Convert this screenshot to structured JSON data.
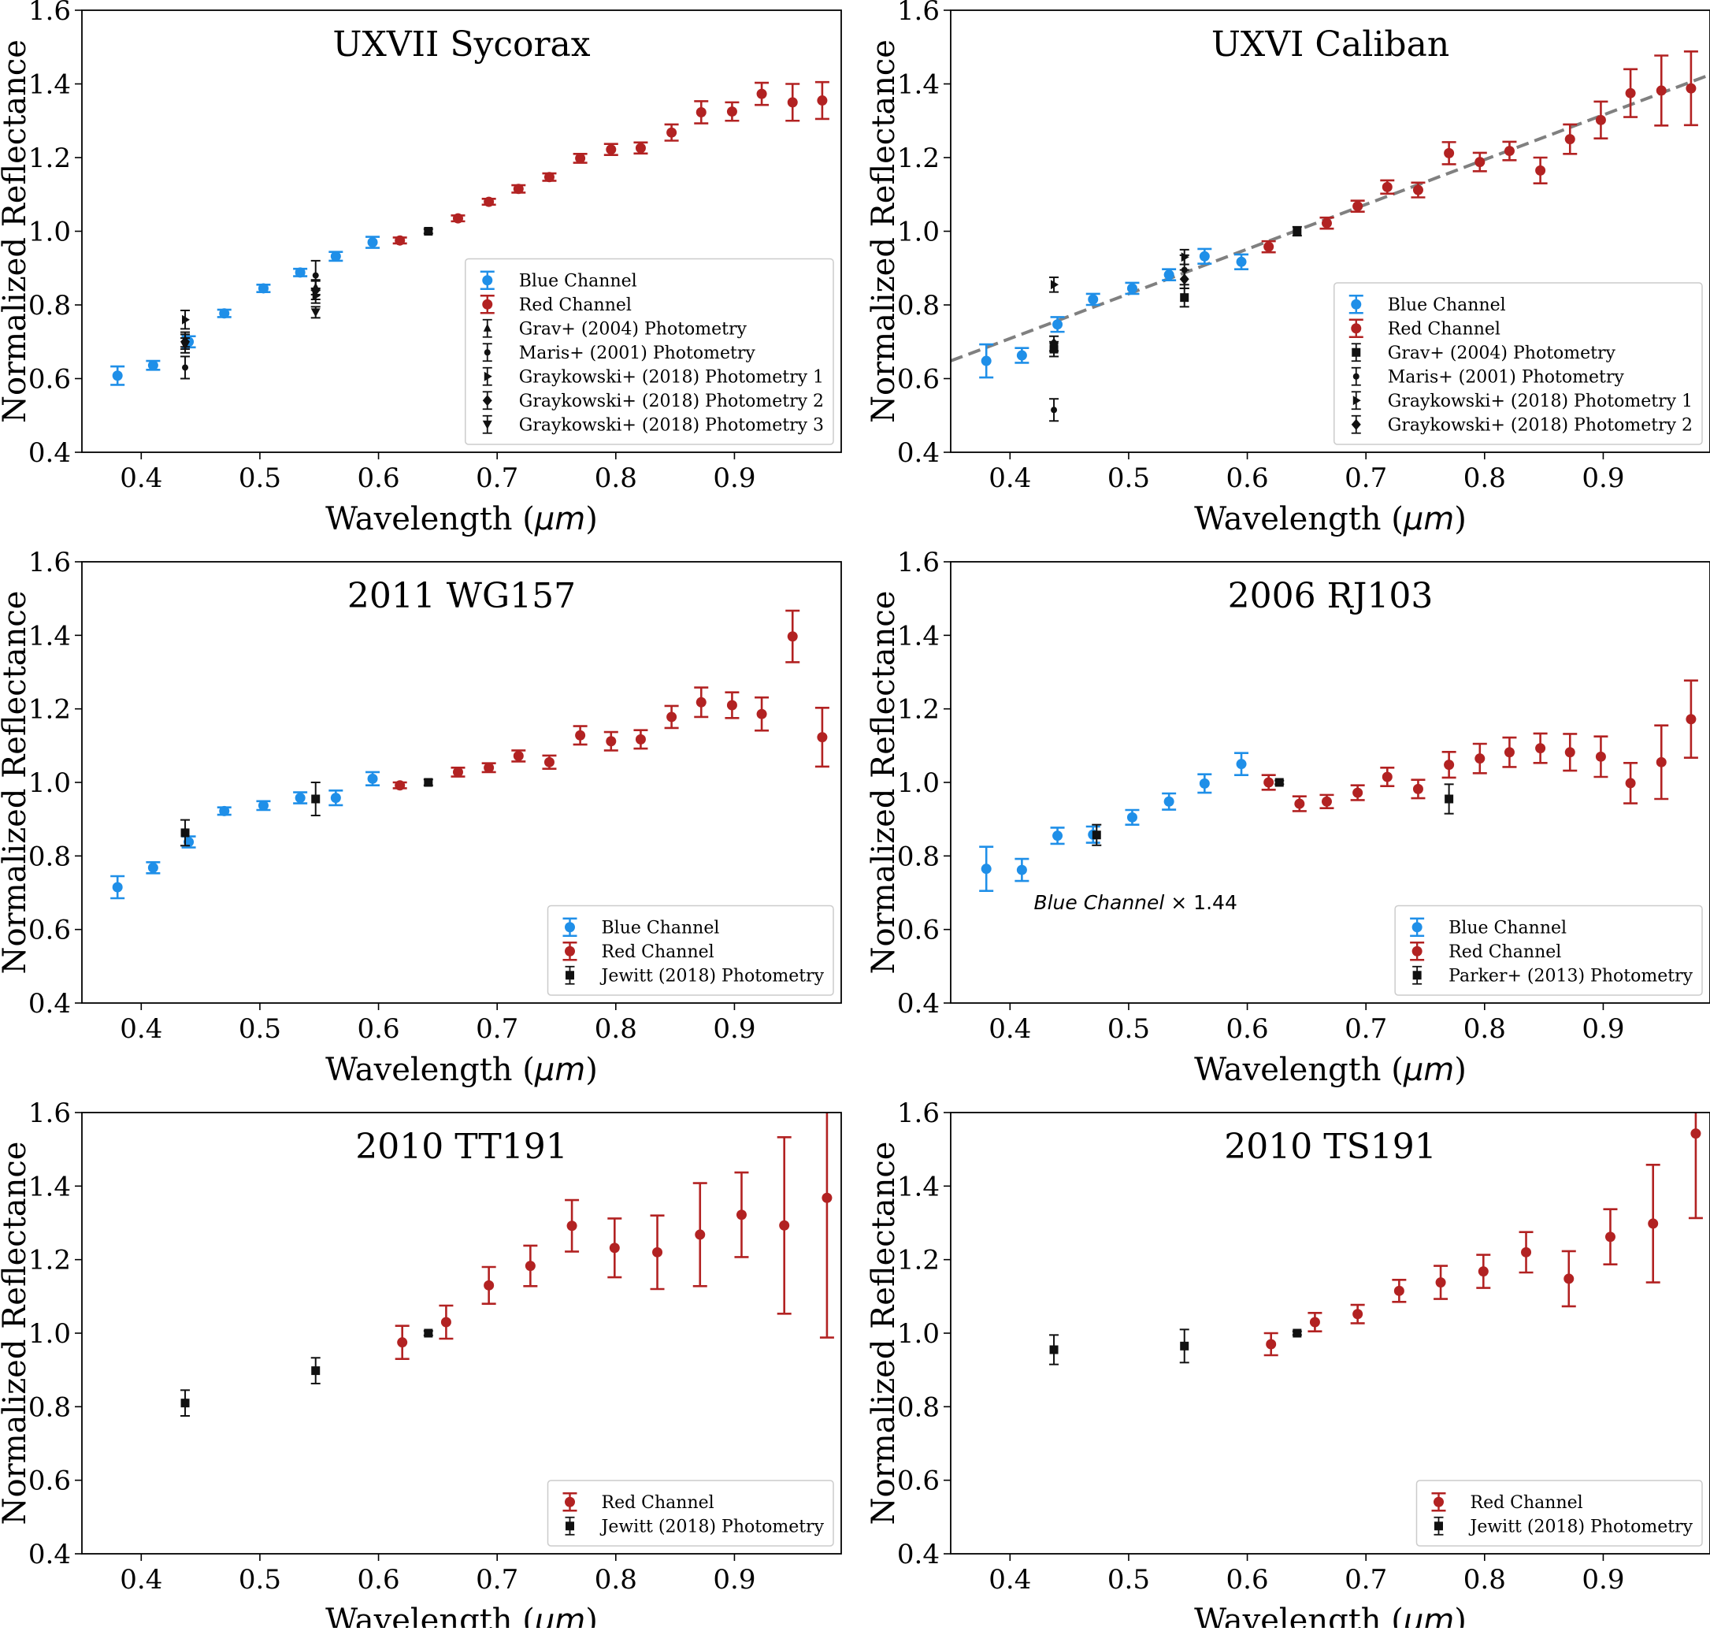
{
  "figure": {
    "xlabel_prefix": "Wavelength (",
    "xlabel_unit": "μm",
    "xlabel_suffix": ")",
    "ylabel": "Normalized Reflectance"
  },
  "colors": {
    "blue": "#1f8fe8",
    "red": "#b22222",
    "black": "#111111",
    "fit": "#808080"
  },
  "chart_data": [
    {
      "type": "scatter",
      "title": "UXVII Sycorax",
      "xlim": [
        0.35,
        0.99
      ],
      "ylim": [
        0.4,
        1.6
      ],
      "xticks": [
        "0.4",
        "0.5",
        "0.6",
        "0.7",
        "0.8",
        "0.9"
      ],
      "yticks": [
        "0.4",
        "0.6",
        "0.8",
        "1.0",
        "1.2",
        "1.4",
        "1.6"
      ],
      "legend_position": "lower-right",
      "series": [
        {
          "name": "Blue Channel",
          "color": "blue",
          "marker": "circle",
          "x": [
            0.38,
            0.41,
            0.44,
            0.47,
            0.503,
            0.534,
            0.564,
            0.595
          ],
          "y": [
            0.608,
            0.636,
            0.7,
            0.777,
            0.845,
            0.888,
            0.932,
            0.97
          ],
          "err": [
            0.025,
            0.012,
            0.015,
            0.01,
            0.01,
            0.01,
            0.012,
            0.015
          ]
        },
        {
          "name": "Red Channel",
          "color": "red",
          "marker": "circle",
          "x": [
            0.618,
            0.667,
            0.693,
            0.718,
            0.744,
            0.77,
            0.796,
            0.821,
            0.847,
            0.872,
            0.898,
            0.923,
            0.949,
            0.974
          ],
          "y": [
            0.975,
            1.035,
            1.08,
            1.115,
            1.147,
            1.198,
            1.222,
            1.226,
            1.268,
            1.323,
            1.325,
            1.373,
            1.35,
            1.355
          ],
          "err": [
            0.008,
            0.008,
            0.008,
            0.01,
            0.01,
            0.012,
            0.015,
            0.015,
            0.022,
            0.03,
            0.025,
            0.03,
            0.05,
            0.05
          ]
        },
        {
          "name": "",
          "color": "black",
          "marker": "square",
          "x": [
            0.642
          ],
          "y": [
            1.0
          ],
          "err": [
            0.006
          ]
        },
        {
          "name": "Grav+ (2004) Photometry",
          "color": "black",
          "marker": "tri-up",
          "x": [
            0.437,
            0.547
          ],
          "y": [
            0.706,
            0.848
          ],
          "err": [
            0.02,
            0.02
          ]
        },
        {
          "name": "Maris+ (2001) Photometry",
          "color": "black",
          "marker": "small-circle",
          "x": [
            0.437,
            0.547
          ],
          "y": [
            0.63,
            0.88
          ],
          "err": [
            0.03,
            0.04
          ]
        },
        {
          "name": "Graykowski+ (2018) Photometry 1",
          "color": "black",
          "marker": "tri-right",
          "x": [
            0.437,
            0.547
          ],
          "y": [
            0.76,
            0.825
          ],
          "err": [
            0.025,
            0.02
          ]
        },
        {
          "name": "Graykowski+ (2018) Photometry 2",
          "color": "black",
          "marker": "diamond",
          "x": [
            0.437,
            0.547
          ],
          "y": [
            0.7,
            0.84
          ],
          "err": [
            0.02,
            0.025
          ]
        },
        {
          "name": "Graykowski+ (2018) Photometry 3",
          "color": "black",
          "marker": "tri-down",
          "x": [
            0.437,
            0.547
          ],
          "y": [
            0.69,
            0.78
          ],
          "err": [
            0.02,
            0.015
          ]
        }
      ]
    },
    {
      "type": "scatter",
      "title": "UXVI Caliban",
      "xlim": [
        0.35,
        0.99
      ],
      "ylim": [
        0.4,
        1.6
      ],
      "xticks": [
        "0.4",
        "0.5",
        "0.6",
        "0.7",
        "0.8",
        "0.9"
      ],
      "yticks": [
        "0.4",
        "0.6",
        "0.8",
        "1.0",
        "1.2",
        "1.4",
        "1.6"
      ],
      "legend_position": "lower-right",
      "fit_line": {
        "x": [
          0.35,
          0.99
        ],
        "y": [
          0.648,
          1.425
        ]
      },
      "series": [
        {
          "name": "Blue Channel",
          "color": "blue",
          "marker": "circle",
          "x": [
            0.38,
            0.41,
            0.44,
            0.47,
            0.503,
            0.534,
            0.564,
            0.595
          ],
          "y": [
            0.648,
            0.663,
            0.747,
            0.815,
            0.845,
            0.882,
            0.932,
            0.917
          ],
          "err": [
            0.045,
            0.02,
            0.02,
            0.015,
            0.015,
            0.015,
            0.02,
            0.02
          ]
        },
        {
          "name": "Red Channel",
          "color": "red",
          "marker": "circle",
          "x": [
            0.618,
            0.667,
            0.693,
            0.718,
            0.744,
            0.77,
            0.796,
            0.821,
            0.847,
            0.872,
            0.898,
            0.923,
            0.949,
            0.974
          ],
          "y": [
            0.958,
            1.022,
            1.068,
            1.12,
            1.112,
            1.212,
            1.188,
            1.218,
            1.165,
            1.25,
            1.302,
            1.375,
            1.382,
            1.388
          ],
          "err": [
            0.015,
            0.015,
            0.015,
            0.018,
            0.02,
            0.03,
            0.025,
            0.025,
            0.035,
            0.04,
            0.05,
            0.065,
            0.095,
            0.1
          ]
        },
        {
          "name": "",
          "color": "black",
          "marker": "square",
          "x": [
            0.642
          ],
          "y": [
            1.0
          ],
          "err": [
            0.012
          ]
        },
        {
          "name": "Grav+ (2004) Photometry",
          "color": "black",
          "marker": "square",
          "x": [
            0.437,
            0.547
          ],
          "y": [
            0.68,
            0.82
          ],
          "err": [
            0.02,
            0.025
          ]
        },
        {
          "name": "Maris+ (2001) Photometry",
          "color": "black",
          "marker": "small-circle",
          "x": [
            0.437,
            0.547
          ],
          "y": [
            0.515,
            0.895
          ],
          "err": [
            0.03,
            0.04
          ]
        },
        {
          "name": "Graykowski+ (2018) Photometry 1",
          "color": "black",
          "marker": "tri-right",
          "x": [
            0.437,
            0.547
          ],
          "y": [
            0.855,
            0.93
          ],
          "err": [
            0.02,
            0.02
          ]
        },
        {
          "name": "Graykowski+ (2018) Photometry 2",
          "color": "black",
          "marker": "diamond",
          "x": [
            0.437,
            0.547
          ],
          "y": [
            0.695,
            0.87
          ],
          "err": [
            0.02,
            0.025
          ]
        }
      ]
    },
    {
      "type": "scatter",
      "title": "2011 WG157",
      "xlim": [
        0.35,
        0.99
      ],
      "ylim": [
        0.4,
        1.6
      ],
      "xticks": [
        "0.4",
        "0.5",
        "0.6",
        "0.7",
        "0.8",
        "0.9"
      ],
      "yticks": [
        "0.4",
        "0.6",
        "0.8",
        "1.0",
        "1.2",
        "1.4",
        "1.6"
      ],
      "legend_position": "lower-right",
      "series": [
        {
          "name": "Blue Channel",
          "color": "blue",
          "marker": "circle",
          "x": [
            0.38,
            0.41,
            0.44,
            0.47,
            0.503,
            0.534,
            0.564,
            0.595
          ],
          "y": [
            0.715,
            0.768,
            0.838,
            0.922,
            0.937,
            0.958,
            0.958,
            1.01
          ],
          "err": [
            0.03,
            0.015,
            0.015,
            0.01,
            0.012,
            0.015,
            0.02,
            0.018
          ]
        },
        {
          "name": "Red Channel",
          "color": "red",
          "marker": "circle",
          "x": [
            0.618,
            0.667,
            0.693,
            0.718,
            0.744,
            0.77,
            0.796,
            0.821,
            0.847,
            0.872,
            0.898,
            0.923,
            0.949,
            0.974
          ],
          "y": [
            0.992,
            1.028,
            1.04,
            1.072,
            1.055,
            1.128,
            1.112,
            1.117,
            1.178,
            1.218,
            1.21,
            1.186,
            1.397,
            1.123
          ],
          "err": [
            0.008,
            0.012,
            0.012,
            0.015,
            0.018,
            0.025,
            0.025,
            0.025,
            0.03,
            0.04,
            0.035,
            0.045,
            0.07,
            0.08
          ]
        },
        {
          "name": "Jewitt (2018) Photometry",
          "color": "black",
          "marker": "square",
          "x": [
            0.437,
            0.547,
            0.642
          ],
          "y": [
            0.863,
            0.955,
            1.0
          ],
          "err": [
            0.035,
            0.045,
            0.008
          ]
        }
      ]
    },
    {
      "type": "scatter",
      "title": "2006 RJ103",
      "xlim": [
        0.35,
        0.99
      ],
      "ylim": [
        0.4,
        1.6
      ],
      "xticks": [
        "0.4",
        "0.5",
        "0.6",
        "0.7",
        "0.8",
        "0.9"
      ],
      "yticks": [
        "0.4",
        "0.6",
        "0.8",
        "1.0",
        "1.2",
        "1.4",
        "1.6"
      ],
      "legend_position": "lower-right",
      "annotation": {
        "text_italic": "Blue Channel",
        "text_rest": " × 1.44",
        "x": 0.42,
        "y": 0.655
      },
      "series": [
        {
          "name": "Blue Channel",
          "color": "blue",
          "marker": "circle",
          "x": [
            0.38,
            0.41,
            0.44,
            0.47,
            0.503,
            0.534,
            0.564,
            0.595
          ],
          "y": [
            0.765,
            0.762,
            0.855,
            0.858,
            0.905,
            0.948,
            0.997,
            1.05
          ],
          "err": [
            0.06,
            0.03,
            0.022,
            0.022,
            0.02,
            0.022,
            0.025,
            0.03
          ]
        },
        {
          "name": "Red Channel",
          "color": "red",
          "marker": "circle",
          "x": [
            0.618,
            0.644,
            0.667,
            0.693,
            0.718,
            0.744,
            0.77,
            0.796,
            0.821,
            0.847,
            0.872,
            0.898,
            0.923,
            0.949,
            0.974
          ],
          "y": [
            1.0,
            0.942,
            0.948,
            0.972,
            1.015,
            0.982,
            1.048,
            1.065,
            1.082,
            1.093,
            1.082,
            1.07,
            0.998,
            1.055,
            1.172
          ],
          "err": [
            0.02,
            0.02,
            0.018,
            0.02,
            0.025,
            0.025,
            0.035,
            0.04,
            0.04,
            0.04,
            0.05,
            0.055,
            0.055,
            0.1,
            0.105
          ]
        },
        {
          "name": "Parker+ (2013) Photometry",
          "color": "black",
          "marker": "square",
          "x": [
            0.473,
            0.627,
            0.77
          ],
          "y": [
            0.857,
            1.0,
            0.955
          ],
          "err": [
            0.028,
            0.005,
            0.04
          ]
        }
      ]
    },
    {
      "type": "scatter",
      "title": "2010 TT191",
      "xlim": [
        0.35,
        0.99
      ],
      "ylim": [
        0.4,
        1.6
      ],
      "xticks": [
        "0.4",
        "0.5",
        "0.6",
        "0.7",
        "0.8",
        "0.9"
      ],
      "yticks": [
        "0.4",
        "0.6",
        "0.8",
        "1.0",
        "1.2",
        "1.4",
        "1.6"
      ],
      "legend_position": "lower-right",
      "series": [
        {
          "name": "Red Channel",
          "color": "red",
          "marker": "circle",
          "x": [
            0.62,
            0.657,
            0.693,
            0.728,
            0.763,
            0.799,
            0.835,
            0.871,
            0.906,
            0.942,
            0.978
          ],
          "y": [
            0.975,
            1.03,
            1.13,
            1.183,
            1.292,
            1.232,
            1.22,
            1.268,
            1.322,
            1.293,
            1.368
          ],
          "err": [
            0.045,
            0.045,
            0.05,
            0.055,
            0.07,
            0.08,
            0.1,
            0.14,
            0.115,
            0.24,
            0.38
          ]
        },
        {
          "name": "Jewitt (2018) Photometry",
          "color": "black",
          "marker": "square",
          "x": [
            0.437,
            0.547,
            0.642
          ],
          "y": [
            0.81,
            0.898,
            1.0
          ],
          "err": [
            0.035,
            0.035,
            0.006
          ]
        }
      ]
    },
    {
      "type": "scatter",
      "title": "2010 TS191",
      "xlim": [
        0.35,
        0.99
      ],
      "ylim": [
        0.4,
        1.6
      ],
      "xticks": [
        "0.4",
        "0.5",
        "0.6",
        "0.7",
        "0.8",
        "0.9"
      ],
      "yticks": [
        "0.4",
        "0.6",
        "0.8",
        "1.0",
        "1.2",
        "1.4",
        "1.6"
      ],
      "legend_position": "lower-right",
      "series": [
        {
          "name": "Red Channel",
          "color": "red",
          "marker": "circle",
          "x": [
            0.62,
            0.657,
            0.693,
            0.728,
            0.763,
            0.799,
            0.835,
            0.871,
            0.906,
            0.942,
            0.978
          ],
          "y": [
            0.97,
            1.03,
            1.052,
            1.115,
            1.138,
            1.168,
            1.22,
            1.148,
            1.262,
            1.298,
            1.543
          ],
          "err": [
            0.03,
            0.025,
            0.025,
            0.03,
            0.045,
            0.045,
            0.055,
            0.075,
            0.075,
            0.16,
            0.23
          ]
        },
        {
          "name": "Jewitt (2018) Photometry",
          "color": "black",
          "marker": "square",
          "x": [
            0.437,
            0.547,
            0.642
          ],
          "y": [
            0.955,
            0.965,
            1.0
          ],
          "err": [
            0.04,
            0.045,
            0.005
          ]
        }
      ]
    }
  ]
}
